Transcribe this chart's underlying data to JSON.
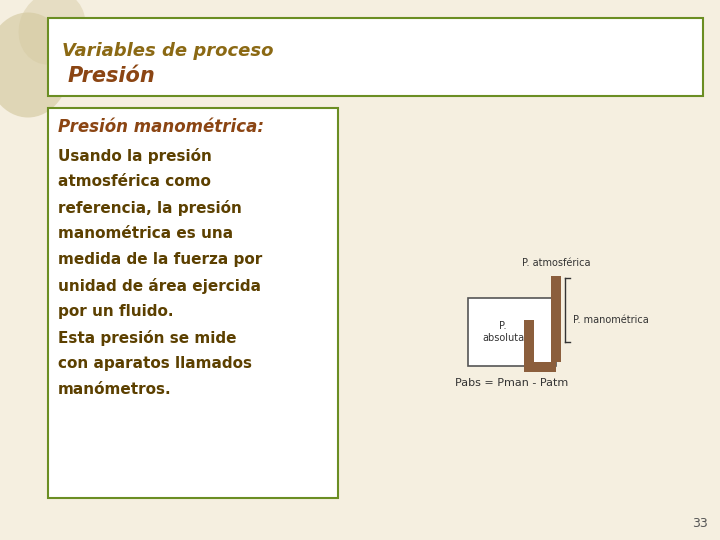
{
  "bg_color": "#f5efe0",
  "white": "#ffffff",
  "title_text1": "Variables de proceso",
  "title_text2": "Presión",
  "title_color1": "#8B6914",
  "title_color2": "#8B4513",
  "title_box_border": "#6B8E23",
  "content_box_border": "#6B8E23",
  "heading_text": "Presión manométrica:",
  "heading_color": "#8B4513",
  "body_lines": [
    "Usando la presión",
    "atmosférica como",
    "referencia, la presión",
    "manométrica es una",
    "medida de la fuerza por",
    "unidad de área ejercida",
    "por un fluido.",
    "Esta presión se mide",
    "con aparatos llamados",
    "manómetros."
  ],
  "body_color": "#5C4000",
  "diagram_label_atm": "P. atmosférica",
  "diagram_label_abs": "P.\nabsoluta",
  "diagram_label_man": "P. manométrica",
  "diagram_formula": "Pabs = Pman - Patm",
  "diagram_color": "#8B4513",
  "tube_color": "#8B5E3C",
  "page_number": "33",
  "leaf_color": "#d4c9a0"
}
